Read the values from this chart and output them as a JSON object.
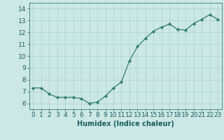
{
  "x": [
    0,
    1,
    2,
    3,
    4,
    5,
    6,
    7,
    8,
    9,
    10,
    11,
    12,
    13,
    14,
    15,
    16,
    17,
    18,
    19,
    20,
    21,
    22,
    23
  ],
  "y": [
    7.3,
    7.3,
    6.8,
    6.5,
    6.5,
    6.5,
    6.4,
    6.0,
    6.1,
    6.6,
    7.3,
    7.8,
    9.6,
    10.8,
    11.5,
    12.1,
    12.45,
    12.7,
    12.25,
    12.2,
    12.75,
    13.1,
    13.5,
    13.1
  ],
  "xlabel": "Humidex (Indice chaleur)",
  "ylim": [
    5.5,
    14.5
  ],
  "xlim": [
    -0.5,
    23.5
  ],
  "yticks": [
    6,
    7,
    8,
    9,
    10,
    11,
    12,
    13,
    14
  ],
  "xticks": [
    0,
    1,
    2,
    3,
    4,
    5,
    6,
    7,
    8,
    9,
    10,
    11,
    12,
    13,
    14,
    15,
    16,
    17,
    18,
    19,
    20,
    21,
    22,
    23
  ],
  "line_color": "#2e7d6e",
  "marker_color": "#2e7d6e",
  "bg_color": "#cce8e6",
  "grid_color": "#aacfcd",
  "xlabel_fontsize": 7,
  "tick_fontsize": 6.5
}
